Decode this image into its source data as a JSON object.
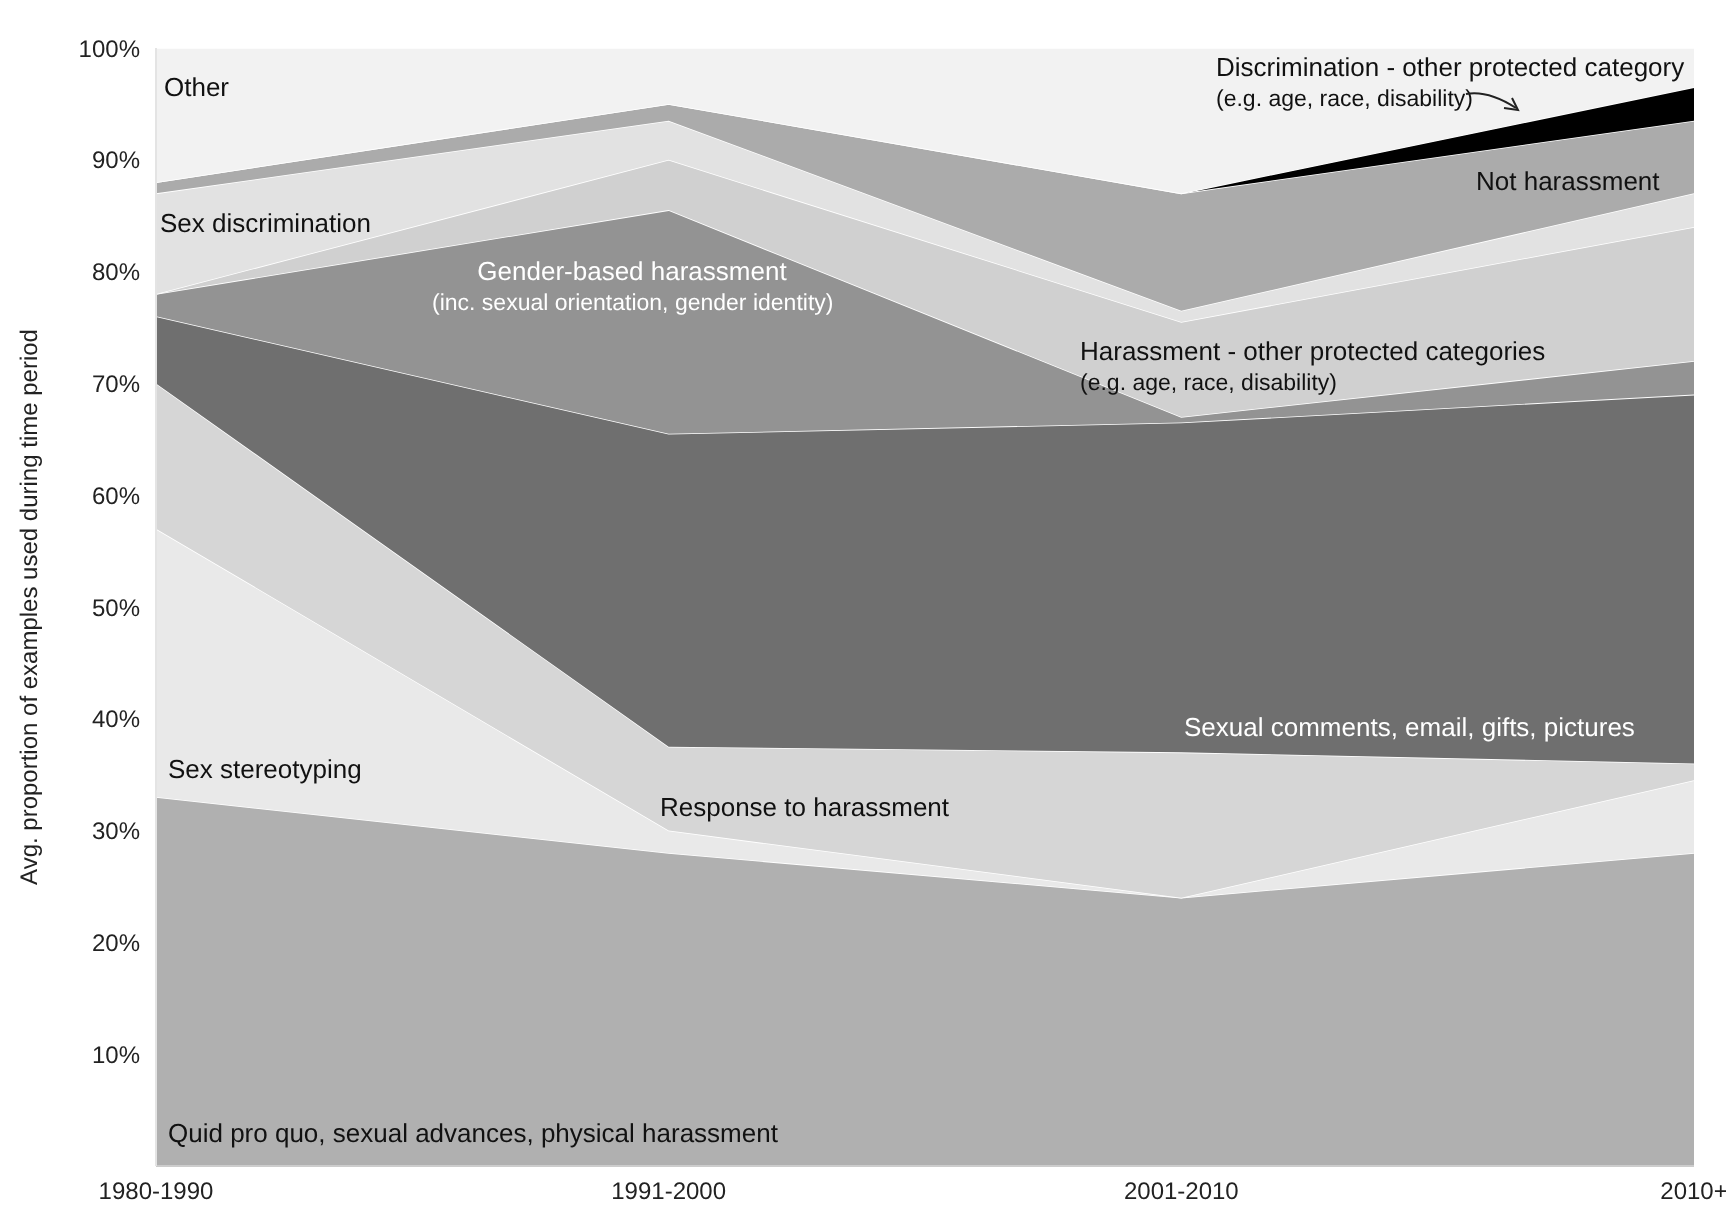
{
  "chart_data": {
    "type": "area",
    "stacked": true,
    "ylabel": "Avg. proportion of examples used during time period",
    "categories": [
      "1980-1990",
      "1991-2000",
      "2001-2010",
      "2010+"
    ],
    "ylim": [
      0,
      100
    ],
    "yticks": [
      {
        "value": 0,
        "label": null
      },
      {
        "value": 10,
        "label": "10%"
      },
      {
        "value": 20,
        "label": "20%"
      },
      {
        "value": 30,
        "label": "30%"
      },
      {
        "value": 40,
        "label": "40%"
      },
      {
        "value": 50,
        "label": "50%"
      },
      {
        "value": 60,
        "label": "60%"
      },
      {
        "value": 70,
        "label": "70%"
      },
      {
        "value": 80,
        "label": "80%"
      },
      {
        "value": 90,
        "label": "90%"
      },
      {
        "value": 100,
        "label": "100%"
      }
    ],
    "grid": false,
    "legend": false,
    "series": [
      {
        "name": "Quid pro quo, sexual advances, physical harassment",
        "color": "#b0b0b0",
        "values": [
          33,
          28,
          24,
          28
        ]
      },
      {
        "name": "Sex stereotyping",
        "color": "#e9e9e9",
        "values": [
          24,
          2,
          0,
          6.5
        ]
      },
      {
        "name": "Response to harassment",
        "color": "#d6d6d6",
        "values": [
          13,
          7.5,
          13,
          1.5
        ]
      },
      {
        "name": "Sexual comments, email, gifts, pictures",
        "color": "#6f6f6f",
        "values": [
          6,
          28,
          29.5,
          33
        ]
      },
      {
        "name": "Gender-based harassment (inc. sexual orientation, gender identity)",
        "color": "#939393",
        "values": [
          2,
          20,
          0.5,
          3
        ]
      },
      {
        "name": "Harassment - other protected categories (e.g. age, race, disability)",
        "color": "#d0d0d0",
        "values": [
          0,
          4.5,
          8.5,
          12
        ]
      },
      {
        "name": "Sex discrimination",
        "color": "#e2e2e2",
        "values": [
          9,
          3.5,
          1,
          3
        ]
      },
      {
        "name": "Not harassment",
        "color": "#ababab",
        "values": [
          1,
          1.5,
          10.5,
          6.5
        ]
      },
      {
        "name": "Discrimination - other protected category (e.g. age, race, disability)",
        "color": "#000000",
        "values": [
          0,
          0,
          0,
          3
        ]
      },
      {
        "name": "Other",
        "color": "#f2f2f2",
        "values": [
          12,
          5,
          13,
          3.5
        ]
      }
    ]
  }
}
